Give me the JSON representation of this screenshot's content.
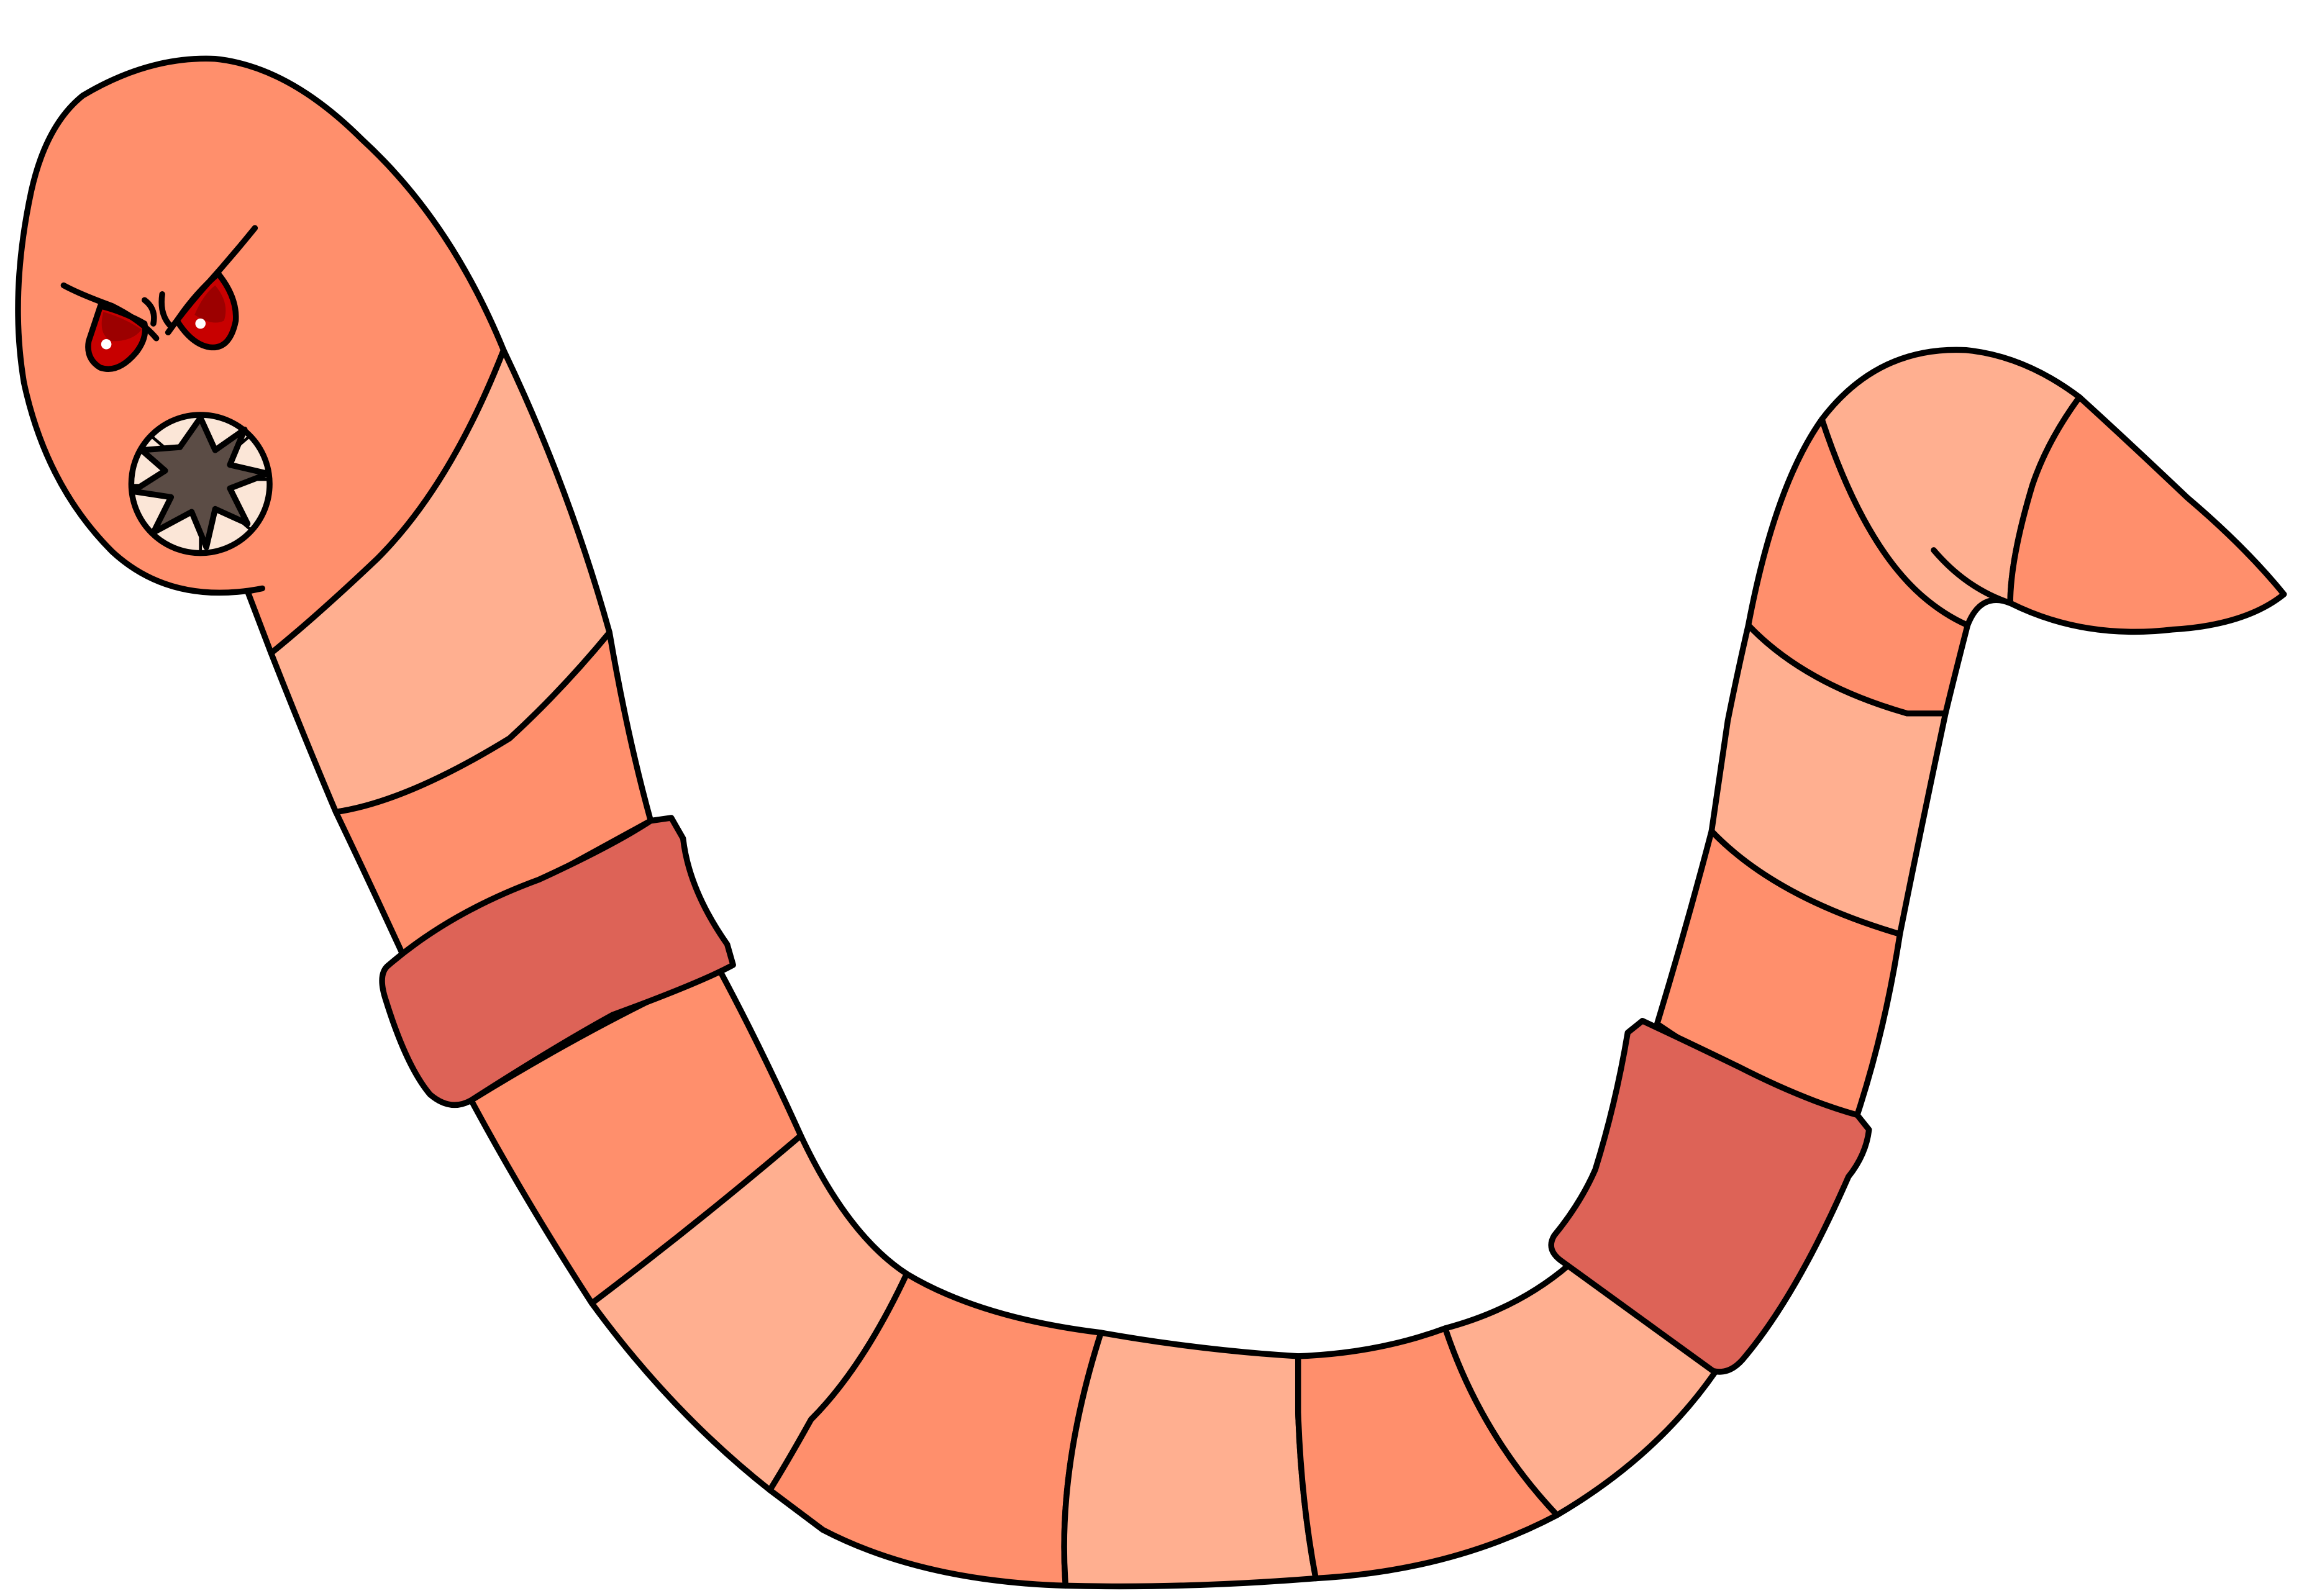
{
  "illustration": {
    "subject": "worm",
    "expression": "angry",
    "colors": {
      "outline": "#000000",
      "segment_dark": "#ff8f6c",
      "segment_light": "#ffaf90",
      "band": "#dd6357",
      "eye": "#c80000",
      "eye_shadow": "#9c0000",
      "mouth": "#5b4c45",
      "teeth": "#fbe6d7",
      "background": "#ffffff"
    },
    "icons": [
      "worm-head",
      "angry-eye-icon",
      "toothy-mouth-icon",
      "clitellum-band"
    ]
  }
}
